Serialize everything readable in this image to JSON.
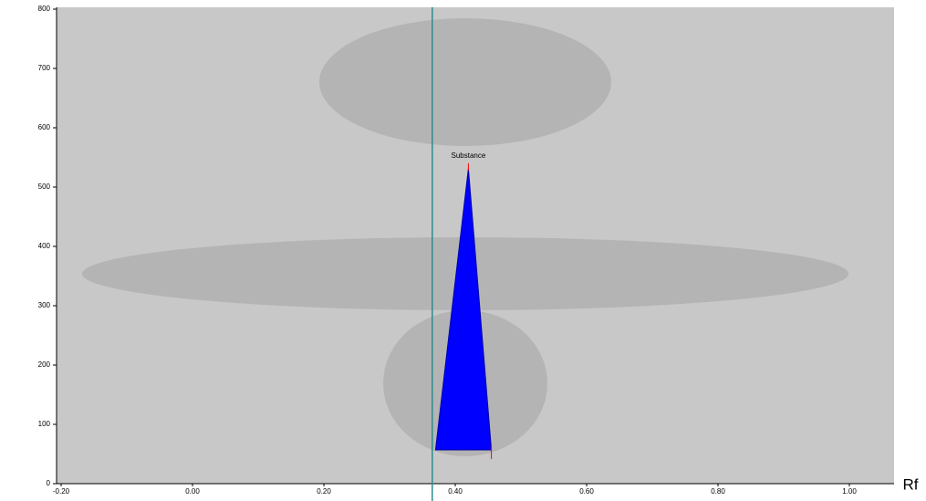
{
  "chart_data": {
    "type": "area",
    "x_label": "Rf",
    "annotation": "Substance",
    "x": [
      0.37,
      0.42,
      0.455
    ],
    "series": [
      {
        "name": "Substance",
        "color": "#0000ff",
        "values": [
          57,
          531,
          57
        ]
      }
    ],
    "marker_line_x": 0.365,
    "marker_line_color": "#2e8b8b",
    "xlim": [
      -0.2,
      1.07
    ],
    "xticks": [
      {
        "value": -0.2,
        "label": "-0.20"
      },
      {
        "value": 0,
        "label": "0.00"
      },
      {
        "value": 0.2,
        "label": "0.20"
      },
      {
        "value": 0.4,
        "label": "0.40"
      },
      {
        "value": 0.6,
        "label": "0.60"
      },
      {
        "value": 0.8,
        "label": "0.80"
      },
      {
        "value": 1,
        "label": "1.00"
      }
    ],
    "ylim": [
      0,
      800
    ],
    "yticks": [
      0,
      100,
      200,
      300,
      400,
      500,
      600,
      700,
      800
    ],
    "grid": false
  }
}
